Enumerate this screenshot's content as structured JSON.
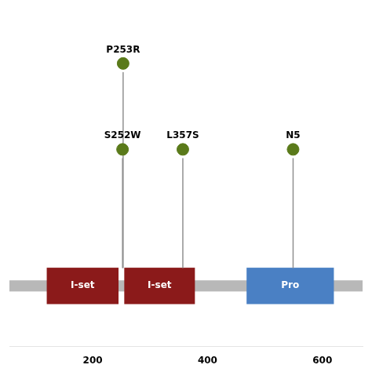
{
  "chart_data": {
    "type": "lollipop",
    "x": [
      253,
      252,
      357,
      549
    ],
    "values": [
      4.4,
      2.7,
      2.7,
      2.7
    ],
    "labels": [
      "P253R",
      "S252W",
      "L357S",
      "N5"
    ],
    "color": "#5a7a1a",
    "domains": [
      {
        "label": "I-set",
        "start": 120,
        "end": 245,
        "color": "#8b1a1a"
      },
      {
        "label": "I-set",
        "start": 255,
        "end": 378,
        "color": "#8b1a1a"
      },
      {
        "label": "Pro",
        "start": 468,
        "end": 620,
        "color": "#4a80c4"
      }
    ],
    "xlim": [
      55,
      670
    ],
    "ylim": [
      -1.2,
      5.5
    ],
    "xticks": [
      {
        "value": 100,
        "label": null
      },
      200,
      {
        "value": 300,
        "label": null
      },
      400,
      {
        "value": 500,
        "label": null
      },
      600
    ],
    "tick_labels": "x",
    "grid": false
  }
}
